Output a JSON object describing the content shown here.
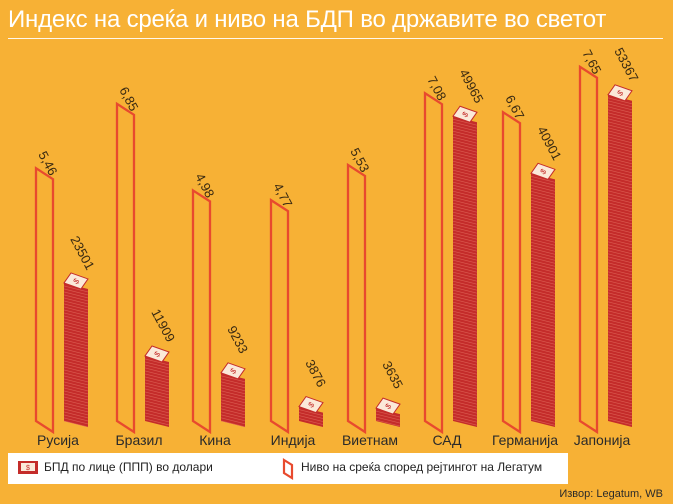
{
  "title": "Индекс на среќа и ниво на БДП во државите во светот",
  "chart_data": {
    "type": "bar",
    "title": "Индекс на среќа и ниво на БДП во државите во светот",
    "categories": [
      "Русија",
      "Бразил",
      "Кина",
      "Индија",
      "Виетнам",
      "САД",
      "Германија",
      "Јапонија"
    ],
    "series": [
      {
        "name": "БПД по лице (ППП) во долари",
        "values": [
          23501,
          11909,
          9233,
          3876,
          3635,
          49965,
          40901,
          53367
        ],
        "labels": [
          "23501",
          "11909",
          "9233",
          "3876",
          "3635",
          "49965",
          "40901",
          "53367"
        ]
      },
      {
        "name": "Ниво на среќа според рејтингот на Легатум",
        "values": [
          5.46,
          6.85,
          4.98,
          4.77,
          5.53,
          7.08,
          6.67,
          7.65
        ],
        "labels": [
          "5,46",
          "6,85",
          "4,98",
          "4,77",
          "5,53",
          "7,08",
          "6,67",
          "7,65"
        ]
      }
    ],
    "colors": {
      "gdp": "#C42C2A",
      "happiness": "#E84A2E"
    }
  },
  "legend": {
    "gdp": "БПД по лице (ППП) во долари",
    "happiness": "Ниво на среќа според рејтингот на Легатум"
  },
  "source": "Извор: Legatum, WB"
}
